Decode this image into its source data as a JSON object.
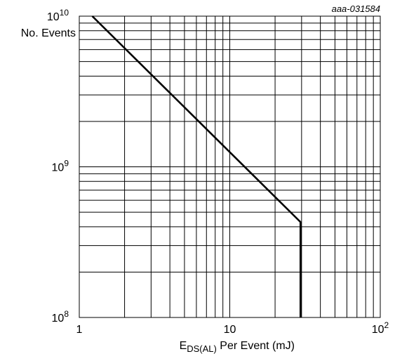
{
  "chart_data": {
    "type": "line",
    "figure_id": "aaa-031584",
    "title": "",
    "xlabel": {
      "prefix": "E",
      "subscript": "DS(AL)",
      "suffix": " Per Event  (mJ)"
    },
    "ylabel": "No. Events",
    "x_scale": "log",
    "y_scale": "log",
    "xlim": [
      1,
      100
    ],
    "ylim": [
      100000000,
      10000000000
    ],
    "grid": true,
    "x_ticks": [
      {
        "value": 1,
        "base": "1",
        "exponent": ""
      },
      {
        "value": 10,
        "base": "10",
        "exponent": ""
      },
      {
        "value": 100,
        "base": "10",
        "exponent": "2"
      }
    ],
    "y_ticks": [
      {
        "value": 100000000,
        "base": "10",
        "exponent": "8"
      },
      {
        "value": 1000000000,
        "base": "10",
        "exponent": "9"
      },
      {
        "value": 10000000000,
        "base": "10",
        "exponent": "10"
      }
    ],
    "series": [
      {
        "x": [
          1.22,
          29.5,
          29.5
        ],
        "y": [
          10000000000,
          430000000,
          100000000
        ]
      }
    ],
    "line_color": "#000000"
  }
}
